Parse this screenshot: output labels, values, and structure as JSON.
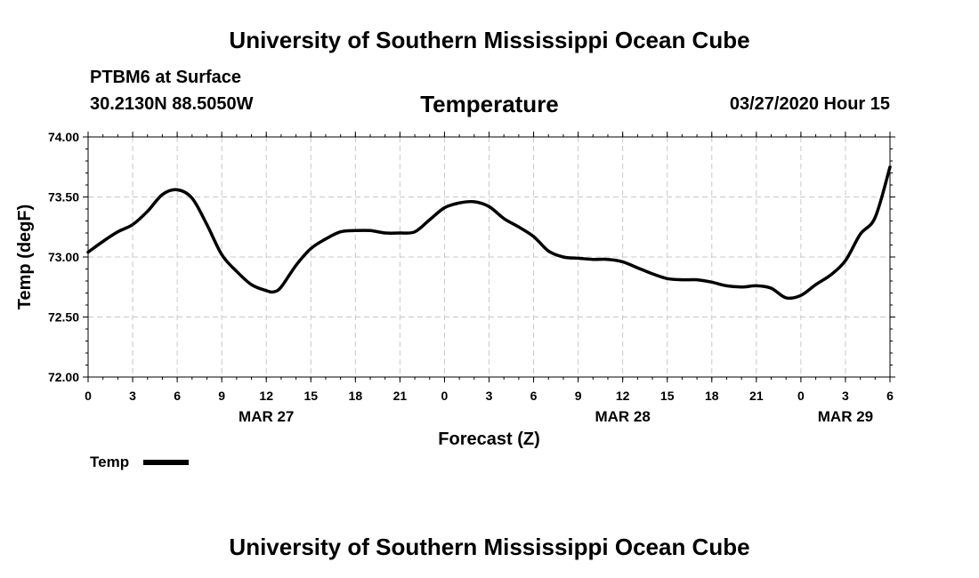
{
  "header": {
    "title": "University of Southern Mississippi Ocean Cube",
    "station": "PTBM6 at Surface",
    "coords": "30.2130N 88.5050W",
    "init_time": "03/27/2020 Hour 15"
  },
  "footer": {
    "title": "University of Southern Mississippi Ocean Cube"
  },
  "colors": {
    "line": "#000000",
    "grid": "#c8c8c8",
    "background": "#ffffff"
  },
  "chart_data": {
    "type": "line",
    "title": "Temperature",
    "xlabel": "Forecast (Z)",
    "ylabel": "Temp (degF)",
    "ylim": [
      72.0,
      74.0
    ],
    "xlim": [
      0,
      54
    ],
    "yticks": [
      72.0,
      72.5,
      73.0,
      73.5,
      74.0
    ],
    "ytick_labels": [
      "72.00",
      "72.50",
      "73.00",
      "73.50",
      "74.00"
    ],
    "xtick_hours": [
      0,
      3,
      6,
      9,
      12,
      15,
      18,
      21,
      24,
      27,
      30,
      33,
      36,
      39,
      42,
      45,
      48,
      51,
      54
    ],
    "xtick_labels": [
      "0",
      "3",
      "6",
      "9",
      "12",
      "15",
      "18",
      "21",
      "0",
      "3",
      "6",
      "9",
      "12",
      "15",
      "18",
      "21",
      "0",
      "3",
      "6"
    ],
    "date_labels": [
      {
        "hour": 12,
        "label": "MAR 27"
      },
      {
        "hour": 36,
        "label": "MAR 28"
      },
      {
        "hour": 51,
        "label": "MAR 29"
      }
    ],
    "grid": true,
    "legend": {
      "label": "Temp",
      "position": "bottom-left"
    },
    "series": [
      {
        "name": "Temp",
        "x": [
          0,
          1,
          2,
          3,
          4,
          5,
          6,
          7,
          8,
          9,
          10,
          11,
          12,
          12.5,
          13,
          14,
          15,
          16,
          17,
          18,
          19,
          20,
          21,
          22,
          23,
          24,
          25,
          26,
          27,
          28,
          29,
          30,
          31,
          32,
          33,
          34,
          35,
          36,
          37,
          38,
          39,
          40,
          41,
          42,
          43,
          44,
          45,
          46,
          47,
          48,
          49,
          50,
          51,
          52,
          53,
          54
        ],
        "values": [
          73.04,
          73.13,
          73.21,
          73.27,
          73.38,
          73.52,
          73.56,
          73.49,
          73.27,
          73.02,
          72.88,
          72.77,
          72.72,
          72.71,
          72.75,
          72.93,
          73.07,
          73.15,
          73.21,
          73.22,
          73.22,
          73.2,
          73.2,
          73.21,
          73.31,
          73.41,
          73.45,
          73.46,
          73.42,
          73.32,
          73.25,
          73.17,
          73.05,
          73.0,
          72.99,
          72.98,
          72.98,
          72.96,
          72.91,
          72.86,
          72.82,
          72.81,
          72.81,
          72.79,
          72.76,
          72.75,
          72.76,
          72.74,
          72.66,
          72.68,
          72.77,
          72.85,
          72.97,
          73.19,
          73.33,
          73.75
        ]
      }
    ]
  }
}
